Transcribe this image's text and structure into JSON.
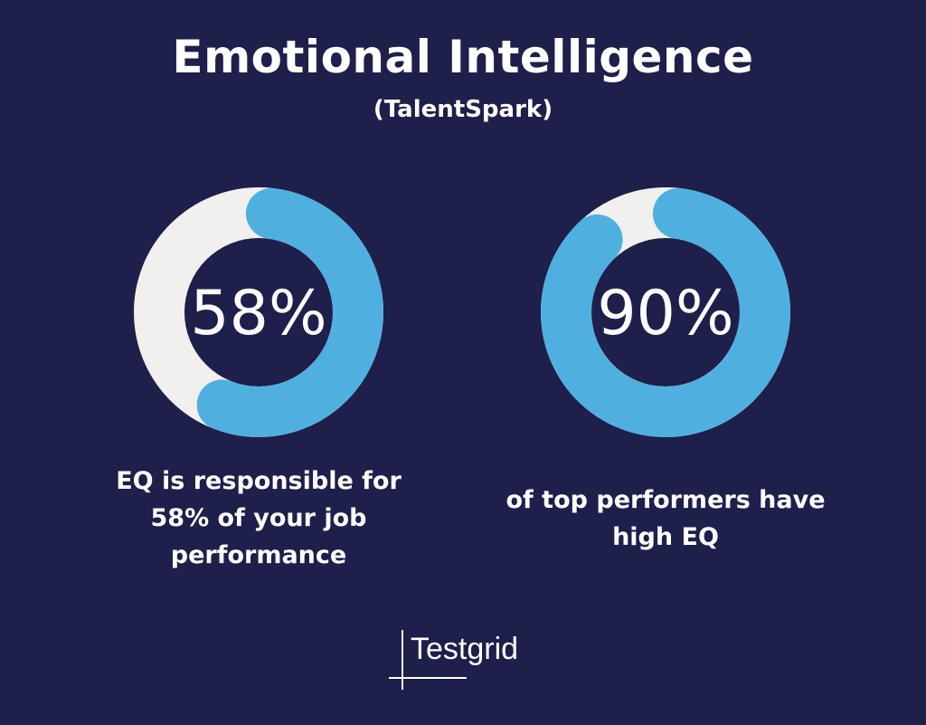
{
  "header": {
    "title": "Emotional Intelligence",
    "subtitle": "(TalentSpark)"
  },
  "chart_data": [
    {
      "type": "pie",
      "style": "donut",
      "value": 58,
      "max": 100,
      "center_label": "58%",
      "caption": [
        "EQ is responsible for",
        "58% of your job",
        "performance"
      ],
      "colors": {
        "value": "#4fb0e0",
        "remainder": "#f1f0ee"
      }
    },
    {
      "type": "pie",
      "style": "donut",
      "value": 90,
      "max": 100,
      "center_label": "90%",
      "caption": [
        "of top performers have",
        "high EQ"
      ],
      "colors": {
        "value": "#4fb0e0",
        "remainder": "#f1f0ee"
      }
    }
  ],
  "brand": {
    "name": "Testgrid"
  },
  "colors": {
    "background": "#1e1f4b"
  }
}
